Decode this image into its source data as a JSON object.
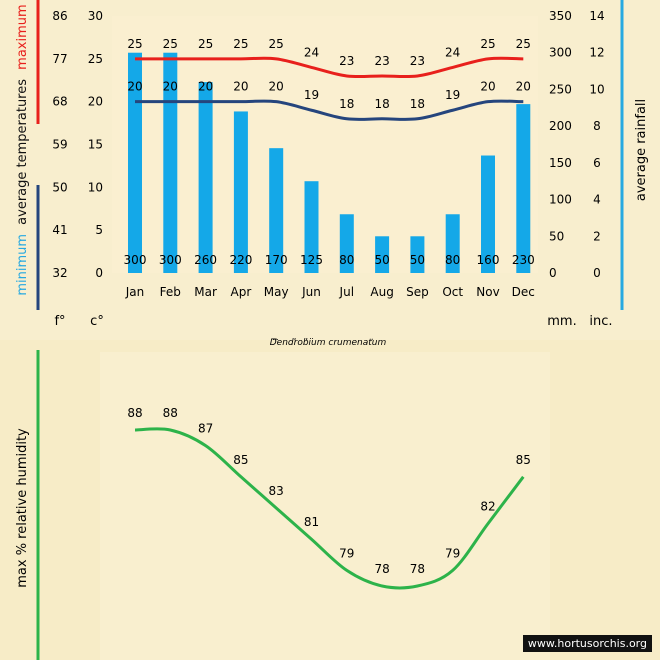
{
  "caption": "Dendrobium crumenatum",
  "watermark": "www.hortusorchis.org",
  "colors": {
    "rain": "#14a8e8",
    "max": "#e8201c",
    "min": "#25457d",
    "humidity": "#2db34a",
    "rain_axis": "#27a9e1",
    "humidity_axis": "#2db34a"
  },
  "chart_data": [
    {
      "type": "bar",
      "categories": [
        "Jan",
        "Feb",
        "Mar",
        "Apr",
        "May",
        "Jun",
        "Jul",
        "Aug",
        "Sep",
        "Oct",
        "Nov",
        "Dec"
      ],
      "series": [
        {
          "name": "average rainfall",
          "unit": "mm.",
          "values": [
            300,
            300,
            260,
            220,
            170,
            125,
            80,
            50,
            50,
            80,
            160,
            230
          ]
        },
        {
          "name": "maximum",
          "unit": "c°",
          "values": [
            25,
            25,
            25,
            25,
            25,
            24,
            23,
            23,
            23,
            24,
            25,
            25
          ]
        },
        {
          "name": "minimum",
          "unit": "c°",
          "values": [
            20,
            20,
            20,
            20,
            20,
            19,
            18,
            18,
            18,
            19,
            20,
            20
          ]
        }
      ],
      "left_label": {
        "part1": "minimum",
        "part2": "average temperatures",
        "part3": "maximum"
      },
      "right_label": "average rainfall",
      "temp_c_ticks": [
        0,
        5,
        10,
        15,
        20,
        25,
        30
      ],
      "temp_f_ticks": [
        32,
        41,
        50,
        59,
        68,
        77,
        86
      ],
      "rain_mm_ticks": [
        0,
        50,
        100,
        150,
        200,
        250,
        300,
        350
      ],
      "rain_inch_ticks": [
        0,
        2,
        4,
        6,
        8,
        10,
        12,
        14
      ],
      "unit_f": "f°",
      "unit_c": "c°",
      "unit_mm": "mm.",
      "unit_inch": "inc.",
      "ylim_c": [
        0,
        30
      ],
      "ylim_mm": [
        0,
        350
      ]
    },
    {
      "type": "line",
      "categories": [
        "Jan",
        "Feb",
        "Mar",
        "Apr",
        "May",
        "Jun",
        "Jul",
        "Aug",
        "Sep",
        "Oct",
        "Nov",
        "Dec"
      ],
      "series": [
        {
          "name": "max % relative humidity",
          "values": [
            88,
            88,
            87,
            85,
            83,
            81,
            79,
            78,
            78,
            79,
            82,
            85
          ]
        }
      ],
      "ylabel": "max % relative humidity"
    }
  ]
}
